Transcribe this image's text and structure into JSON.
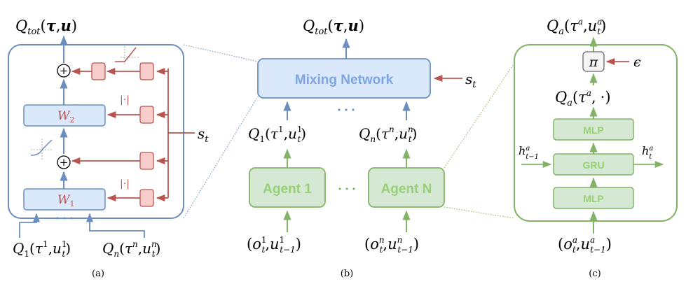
{
  "colors": {
    "blue_stroke": "#6c8ebf",
    "blue_fill": "#dae8fc",
    "blue_text": "#7ea6e0",
    "red_stroke": "#b85450",
    "red_fill": "#f8cecc",
    "green_stroke": "#82b366",
    "green_fill": "#d5e8d4",
    "green_text": "#97d077",
    "gray_fill": "#f5f5f5"
  },
  "panel_a": {
    "caption": "(a)",
    "q_tot": {
      "base": "Q",
      "sub": "tot",
      "open": "(",
      "tau": "τ",
      "comma": ",",
      "u": "u",
      "close": ")"
    },
    "w2": {
      "base": "W",
      "sub": "2"
    },
    "w1": {
      "base": "W",
      "sub": "1"
    },
    "abs_top": "|·|",
    "abs_bottom": "|·|",
    "plus": "+",
    "dots": "• • •",
    "state": {
      "base": "s",
      "sub": "t"
    },
    "q1": {
      "base": "Q",
      "sub": "1",
      "open": "(",
      "tau": "τ",
      "tau_sup": "1",
      "comma": ",",
      "u": "u",
      "u_sub": "t",
      "u_sup": "1",
      "close": ")"
    },
    "qn": {
      "base": "Q",
      "sub": "n",
      "open": "(",
      "tau": "τ",
      "tau_sup": "n",
      "comma": ",",
      "u": "u",
      "u_sub": "t",
      "u_sup": "n",
      "close": ")"
    }
  },
  "panel_b": {
    "caption": "(b)",
    "q_tot": {
      "base": "Q",
      "sub": "tot",
      "open": "(",
      "tau": "τ",
      "comma": ",",
      "u": "u",
      "close": ")"
    },
    "mixing_label": "Mixing Network",
    "state": {
      "base": "s",
      "sub": "t"
    },
    "dots_top": "• • •",
    "dots_mid": "• • •",
    "q1": {
      "base": "Q",
      "sub": "1",
      "open": "(",
      "tau": "τ",
      "tau_sup": "1",
      "comma": ",",
      "u": "u",
      "u_sub": "t",
      "u_sup": "1",
      "close": ")"
    },
    "qn": {
      "base": "Q",
      "sub": "n",
      "open": "(",
      "tau": "τ",
      "tau_sup": "n",
      "comma": ",",
      "u": "u",
      "u_sub": "t",
      "u_sup": "n",
      "close": ")"
    },
    "agent1_label": "Agent 1",
    "agentn_label": "Agent N",
    "obs1": {
      "open": "(",
      "o": "o",
      "o_sub": "t",
      "o_sup": "1",
      "comma": ",",
      "u": "u",
      "u_sub": "t−1",
      "u_sup": "1",
      "close": ")"
    },
    "obsn": {
      "open": "(",
      "o": "o",
      "o_sub": "t",
      "o_sup": "n",
      "comma": ",",
      "u": "u",
      "u_sub": "t−1",
      "u_sup": "n",
      "close": ")"
    }
  },
  "panel_c": {
    "caption": "(c)",
    "q_a_top": {
      "base": "Q",
      "sub": "a",
      "open": "(",
      "tau": "τ",
      "tau_sup": "a",
      "comma": ",",
      "u": "u",
      "u_sub": "t",
      "u_sup": "a",
      "close": ")"
    },
    "pi": "π",
    "epsilon": "ϵ",
    "q_a_mid": {
      "base": "Q",
      "sub": "a",
      "open": "(",
      "tau": "τ",
      "tau_sup": "a",
      "comma": ",",
      "dot": "·",
      "close": ")"
    },
    "mlp_top": "MLP",
    "gru": "GRU",
    "mlp_bottom": "MLP",
    "h_in": {
      "base": "h",
      "sup": "a",
      "sub": "t−1"
    },
    "h_out": {
      "base": "h",
      "sup": "a",
      "sub": "t"
    },
    "obs": {
      "open": "(",
      "o": "o",
      "o_sub": "t",
      "o_sup": "a",
      "comma": ",",
      "u": "u",
      "u_sub": "t−1",
      "u_sup": "a",
      "close": ")"
    }
  }
}
